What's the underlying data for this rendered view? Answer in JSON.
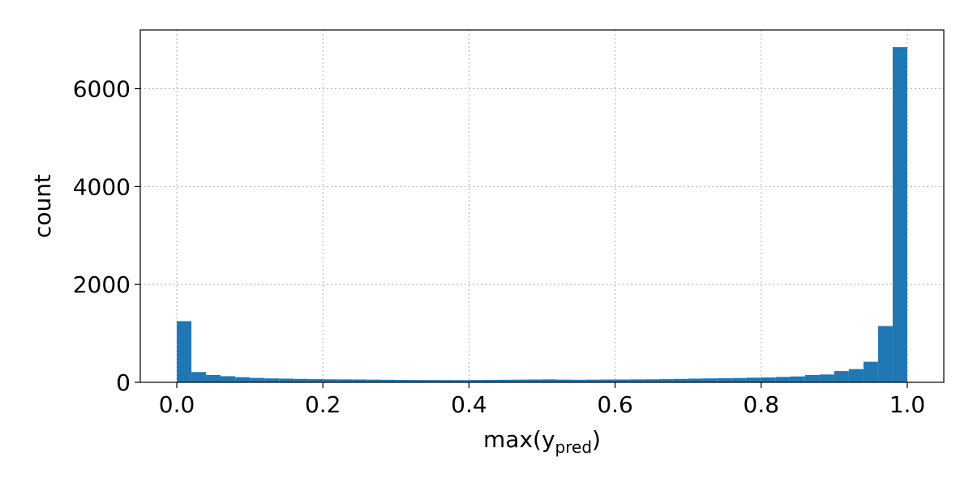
{
  "chart_data": {
    "type": "bar",
    "xlabel": "max(y",
    "xlabel_sub": "pred",
    "xlabel_close": ")",
    "ylabel": "count",
    "xlim": [
      -0.05,
      1.05
    ],
    "ylim": [
      0,
      7200
    ],
    "xticks": [
      "0.0",
      "0.2",
      "0.4",
      "0.6",
      "0.8",
      "1.0"
    ],
    "yticks": [
      "0",
      "2000",
      "4000",
      "6000"
    ],
    "grid": true,
    "bin_width": 0.02,
    "bin_start": 0.0,
    "values": [
      1250,
      210,
      150,
      125,
      105,
      90,
      80,
      75,
      70,
      65,
      62,
      60,
      58,
      55,
      52,
      50,
      48,
      47,
      46,
      45,
      48,
      50,
      52,
      55,
      58,
      60,
      55,
      52,
      55,
      57,
      58,
      60,
      62,
      65,
      70,
      75,
      80,
      85,
      88,
      95,
      100,
      110,
      120,
      150,
      160,
      230,
      270,
      420,
      1150,
      6850
    ],
    "color": "#1f77b4"
  }
}
